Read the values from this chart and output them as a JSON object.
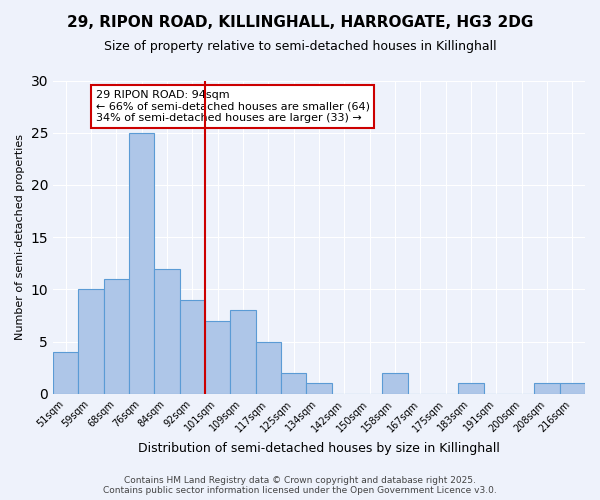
{
  "title": "29, RIPON ROAD, KILLINGHALL, HARROGATE, HG3 2DG",
  "subtitle": "Size of property relative to semi-detached houses in Killinghall",
  "xlabel": "Distribution of semi-detached houses by size in Killinghall",
  "ylabel": "Number of semi-detached properties",
  "categories": [
    "51sqm",
    "59sqm",
    "68sqm",
    "76sqm",
    "84sqm",
    "92sqm",
    "101sqm",
    "109sqm",
    "117sqm",
    "125sqm",
    "134sqm",
    "142sqm",
    "150sqm",
    "158sqm",
    "167sqm",
    "175sqm",
    "183sqm",
    "191sqm",
    "200sqm",
    "208sqm",
    "216sqm"
  ],
  "values": [
    4,
    10,
    11,
    25,
    12,
    9,
    7,
    8,
    5,
    2,
    1,
    0,
    0,
    2,
    0,
    0,
    1,
    0,
    0,
    1,
    1
  ],
  "bar_color": "#aec6e8",
  "bar_edge_color": "#5b9bd5",
  "highlight_line_color": "#cc0000",
  "highlight_line_index": 5,
  "annotation_text": "29 RIPON ROAD: 94sqm\n← 66% of semi-detached houses are smaller (64)\n34% of semi-detached houses are larger (33) →",
  "annotation_box_color": "#ffffff",
  "annotation_box_edge_color": "#cc0000",
  "ylim": [
    0,
    30
  ],
  "yticks": [
    0,
    5,
    10,
    15,
    20,
    25,
    30
  ],
  "footer": "Contains HM Land Registry data © Crown copyright and database right 2025.\nContains public sector information licensed under the Open Government Licence v3.0.",
  "background_color": "#eef2fb",
  "grid_color": "#ffffff"
}
